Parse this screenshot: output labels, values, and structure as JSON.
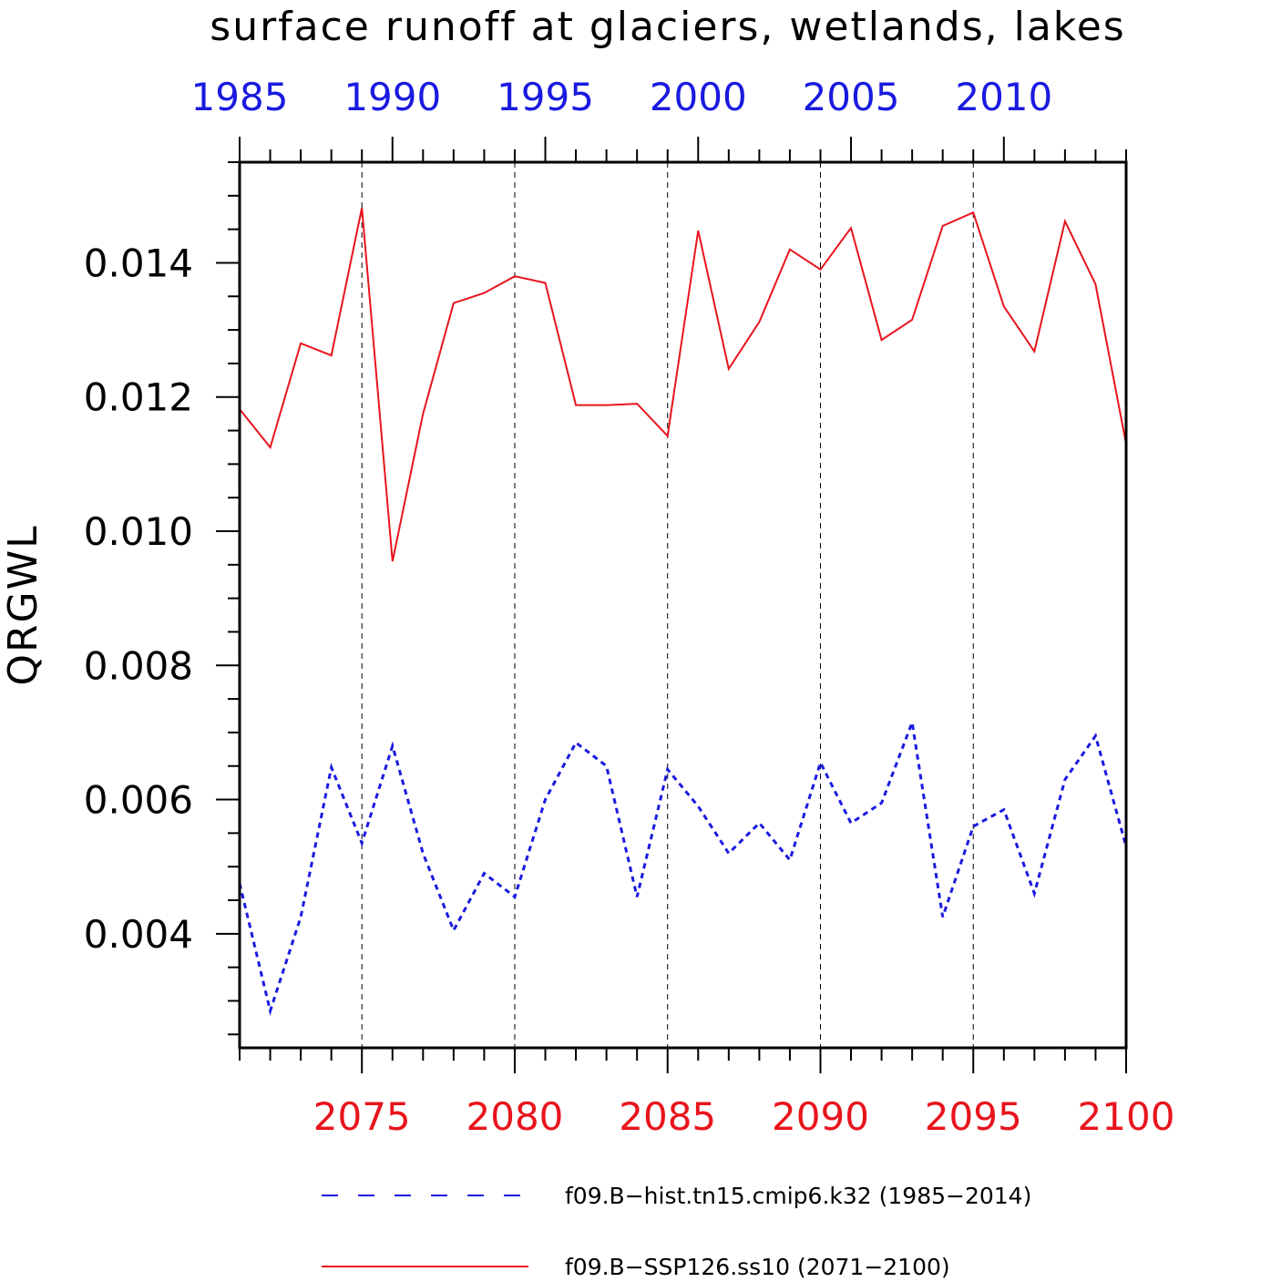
{
  "chart_data": {
    "type": "line",
    "title": "surface runoff at glaciers, wetlands, lakes",
    "ylabel": "QRGWL",
    "xlabel": "",
    "ylim": [
      0.0023,
      0.0155
    ],
    "yticks": [
      "0.004",
      "0.006",
      "0.008",
      "0.010",
      "0.012",
      "0.014"
    ],
    "grid": "vertical dashed lines at major bottom ticks",
    "legend_position": "bottom",
    "x_bottom": {
      "range": [
        2071,
        2100
      ],
      "tick_labels": [
        "2075",
        "2080",
        "2085",
        "2090",
        "2095",
        "2100"
      ],
      "color": "#e8141c"
    },
    "x_top": {
      "range": [
        1985,
        2014
      ],
      "tick_labels": [
        "1985",
        "1990",
        "1995",
        "2000",
        "2005",
        "2010"
      ],
      "color": "#1a1ae0"
    },
    "series": [
      {
        "name": "f09.B−hist.tn15.cmip6.k32 (1985−2014)",
        "color": "#1a1ae0",
        "style": "dashed",
        "axis": "top",
        "x": [
          1985,
          1986,
          1987,
          1988,
          1989,
          1990,
          1991,
          1992,
          1993,
          1994,
          1995,
          1996,
          1997,
          1998,
          1999,
          2000,
          2001,
          2002,
          2003,
          2004,
          2005,
          2006,
          2007,
          2008,
          2009,
          2010,
          2011,
          2012,
          2013,
          2014
        ],
        "values": [
          0.00475,
          0.00285,
          0.00425,
          0.00648,
          0.00535,
          0.0068,
          0.0052,
          0.00405,
          0.0049,
          0.00455,
          0.006,
          0.00685,
          0.0065,
          0.00455,
          0.00645,
          0.0059,
          0.0052,
          0.00565,
          0.0051,
          0.00655,
          0.00565,
          0.00595,
          0.00715,
          0.00425,
          0.0056,
          0.00585,
          0.0046,
          0.0063,
          0.00695,
          0.0053
        ]
      },
      {
        "name": "f09.B−SSP126.ss10 (2071−2100)",
        "color": "#e8141c",
        "style": "solid",
        "axis": "bottom",
        "x": [
          2071,
          2072,
          2073,
          2074,
          2075,
          2076,
          2077,
          2078,
          2079,
          2080,
          2081,
          2082,
          2083,
          2084,
          2085,
          2086,
          2087,
          2088,
          2089,
          2090,
          2091,
          2092,
          2093,
          2094,
          2095,
          2096,
          2097,
          2098,
          2099,
          2100
        ],
        "values": [
          0.01182,
          0.01125,
          0.0128,
          0.01262,
          0.01482,
          0.00955,
          0.01175,
          0.0134,
          0.01355,
          0.0138,
          0.0137,
          0.01188,
          0.01188,
          0.0119,
          0.01142,
          0.01448,
          0.01242,
          0.01312,
          0.0142,
          0.0139,
          0.01452,
          0.01285,
          0.01315,
          0.01455,
          0.01475,
          0.01335,
          0.01268,
          0.01462,
          0.01368,
          0.0113
        ]
      }
    ]
  }
}
